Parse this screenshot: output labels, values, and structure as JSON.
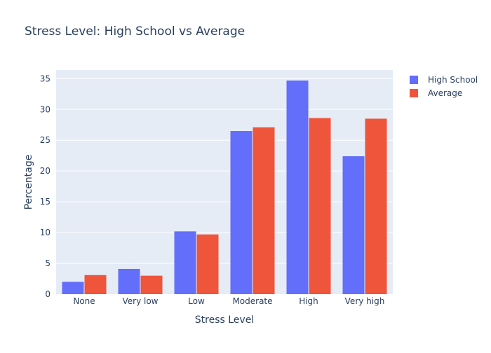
{
  "chart_data": {
    "type": "bar",
    "title": "Stress Level: High School vs Average",
    "xlabel": "Stress Level",
    "ylabel": "Percentage",
    "categories": [
      "None",
      "Very low",
      "Low",
      "Moderate",
      "High",
      "Very high"
    ],
    "series": [
      {
        "name": "High School",
        "color": "#636efa",
        "values": [
          2.0,
          4.1,
          10.2,
          26.5,
          34.7,
          22.4
        ]
      },
      {
        "name": "Average",
        "color": "#ef553b",
        "values": [
          3.1,
          3.0,
          9.7,
          27.1,
          28.6,
          28.5
        ]
      }
    ],
    "ylim": [
      0,
      36.4
    ],
    "yticks": [
      0,
      5,
      10,
      15,
      20,
      25,
      30,
      35
    ],
    "grid": true,
    "legend_position": "top-right",
    "plot_background": "#e5ecf6",
    "text_color": "#2a3f5f"
  }
}
